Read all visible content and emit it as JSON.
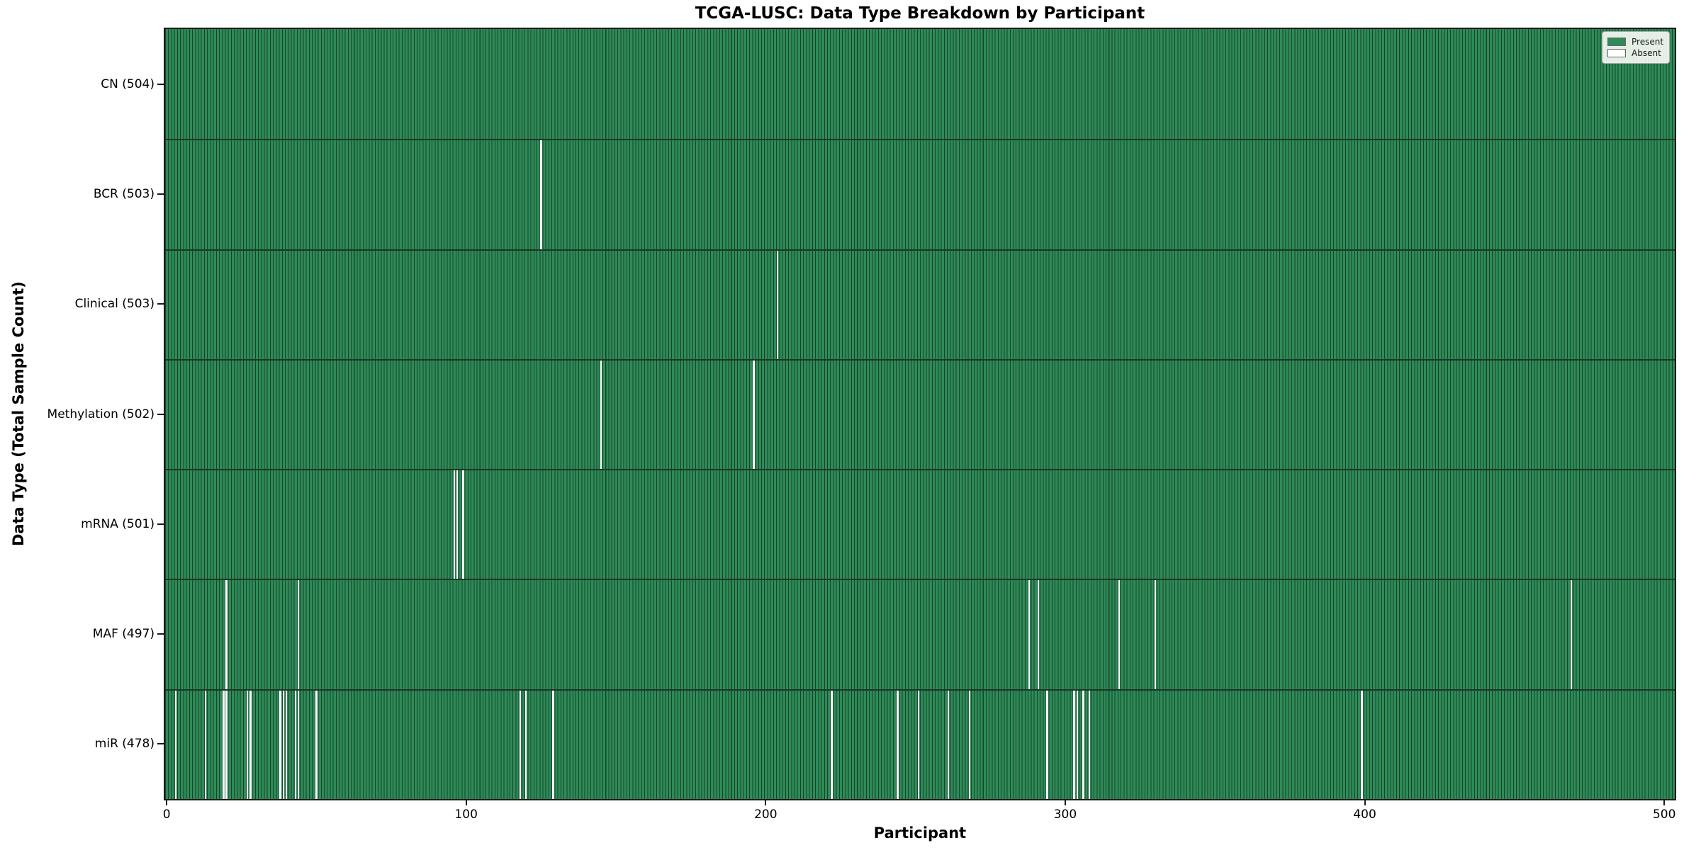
{
  "chart_data": {
    "type": "heatmap",
    "title": "TCGA-LUSC: Data Type Breakdown by Participant",
    "xlabel": "Participant",
    "ylabel": "Data Type (Total Sample Count)",
    "x_ticks": [
      0,
      100,
      200,
      300,
      400,
      500
    ],
    "xlim": [
      -0.5,
      503.5
    ],
    "n_participants": 504,
    "grid": false,
    "colors": {
      "present": "#2e8b57",
      "absent": "#ffffff",
      "bar_edge": "#16432b",
      "row_divider": "#1c3527",
      "axis": "#1a1a1a"
    },
    "legend": {
      "position": "upper-right",
      "entries": [
        {
          "label": "Present",
          "color": "#2e8b57"
        },
        {
          "label": "Absent",
          "color": "#ffffff"
        }
      ]
    },
    "rows": [
      {
        "name": "CN",
        "label": "CN (504)",
        "present_count": 504,
        "absent_participants": []
      },
      {
        "name": "BCR",
        "label": "BCR (503)",
        "present_count": 503,
        "absent_participants": [
          125
        ]
      },
      {
        "name": "Clinical",
        "label": "Clinical (503)",
        "present_count": 503,
        "absent_participants": [
          204
        ]
      },
      {
        "name": "Methylation",
        "label": "Methylation (502)",
        "present_count": 502,
        "absent_participants": [
          145,
          196
        ]
      },
      {
        "name": "mRNA",
        "label": "mRNA (501)",
        "present_count": 501,
        "absent_participants": [
          96,
          97,
          99
        ]
      },
      {
        "name": "MAF",
        "label": "MAF (497)",
        "present_count": 497,
        "absent_participants": [
          20,
          44,
          288,
          291,
          318,
          330,
          469
        ]
      },
      {
        "name": "miR",
        "label": "miR (478)",
        "present_count": 478,
        "absent_participants": [
          3,
          13,
          19,
          20,
          27,
          28,
          38,
          39,
          40,
          43,
          44,
          50,
          118,
          120,
          129,
          222,
          244,
          251,
          261,
          268,
          294,
          303,
          304,
          306,
          308,
          399
        ]
      }
    ]
  }
}
